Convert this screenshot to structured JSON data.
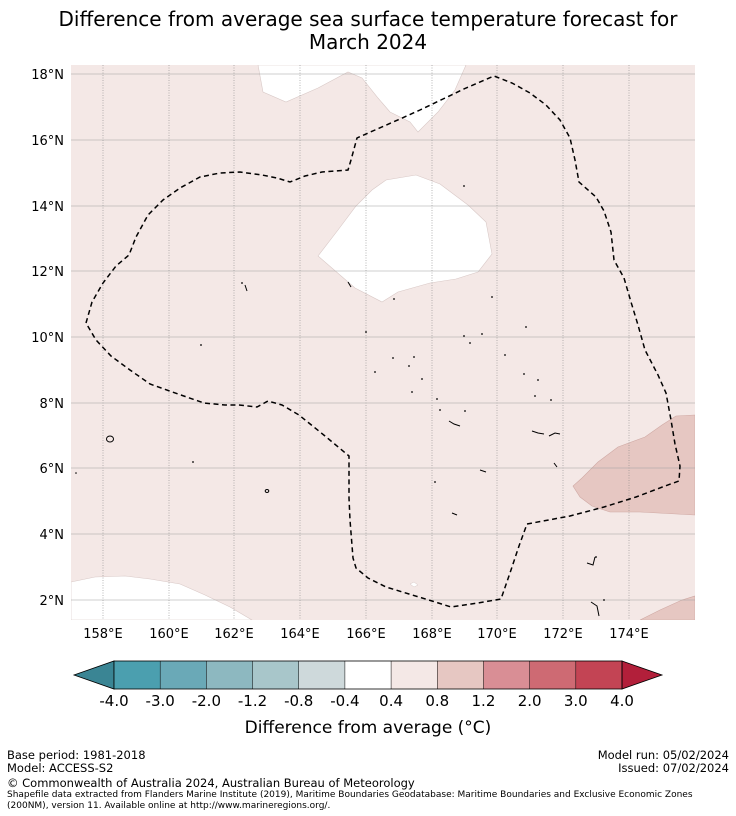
{
  "title_line1": "Difference from average sea surface temperature forecast for",
  "title_line2": "March 2024",
  "map": {
    "lon_ticks": [
      "158°E",
      "160°E",
      "162°E",
      "164°E",
      "166°E",
      "168°E",
      "170°E",
      "172°E",
      "174°E"
    ],
    "lat_ticks": [
      "18°N",
      "16°N",
      "14°N",
      "12°N",
      "10°N",
      "8°N",
      "6°N",
      "4°N",
      "2°N"
    ],
    "colors": {
      "ocean_0p4_0p8": "#f4e8e6",
      "ocean_0p8_1p2": "#e6c7c2",
      "neutral": "#ffffff",
      "eez_line": "#000000"
    }
  },
  "colorbar": {
    "tick_labels": [
      "-4.0",
      "-3.0",
      "-2.0",
      "-1.2",
      "-0.8",
      "-0.4",
      "0.4",
      "0.8",
      "1.2",
      "2.0",
      "3.0",
      "4.0"
    ],
    "colors": [
      "#4b9faf",
      "#6aa9b7",
      "#8db8c0",
      "#a8c6ca",
      "#ced9db",
      "#ffffff",
      "#f4e8e6",
      "#e6c7c2",
      "#d98e95",
      "#ce6a73",
      "#c34454"
    ],
    "under_color": "#3a8594",
    "over_color": "#b21f3a",
    "label": "Difference from average (°C)"
  },
  "footer": {
    "base_period": "Base period: 1981-2018",
    "model": "Model: ACCESS-S2",
    "model_run": "Model run: 05/02/2024",
    "issued": "Issued: 07/02/2024",
    "copyright": "© Commonwealth of Australia 2024, Australian Bureau of Meteorology",
    "source_line1": "Shapefile data extracted from Flanders Marine Institute (2019), Maritime Boundaries Geodatabase: Maritime Boundaries and Exclusive Economic Zones",
    "source_line2": "(200NM), version 11. Available online at http://www.marineregions.org/."
  }
}
